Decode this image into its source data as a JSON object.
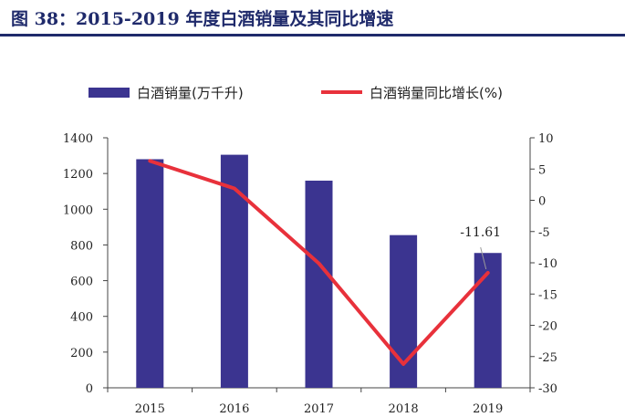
{
  "figure": {
    "title": "图 38：2015-2019 年度白酒销量及其同比增速"
  },
  "chart_data": {
    "type": "bar",
    "title": "图 38：2015-2019 年度白酒销量及其同比增速",
    "categories": [
      "2015",
      "2016",
      "2017",
      "2018",
      "2019"
    ],
    "series": [
      {
        "name": "白酒销量(万千升)",
        "type": "bar",
        "axis": "left",
        "values": [
          1280,
          1305,
          1160,
          855,
          755
        ],
        "color": "#3b3490"
      },
      {
        "name": "白酒销量同比增长(%)",
        "type": "line",
        "axis": "right",
        "values": [
          6.3,
          1.9,
          -10.1,
          -26.2,
          -11.61
        ],
        "color": "#e8313b"
      }
    ],
    "y_left": {
      "min": 0,
      "max": 1400,
      "ticks": [
        0,
        200,
        400,
        600,
        800,
        1000,
        1200,
        1400
      ]
    },
    "y_right": {
      "min": -30,
      "max": 10,
      "ticks": [
        10,
        5,
        0,
        -5,
        -10,
        -15,
        -20,
        -25,
        -30
      ]
    },
    "annotation": {
      "text": "-11.61",
      "category": "2019",
      "series": "白酒销量同比增长(%)"
    },
    "legend": {
      "position": "top",
      "entries": [
        "白酒销量(万千升)",
        "白酒销量同比增长(%)"
      ]
    },
    "grid": false
  }
}
